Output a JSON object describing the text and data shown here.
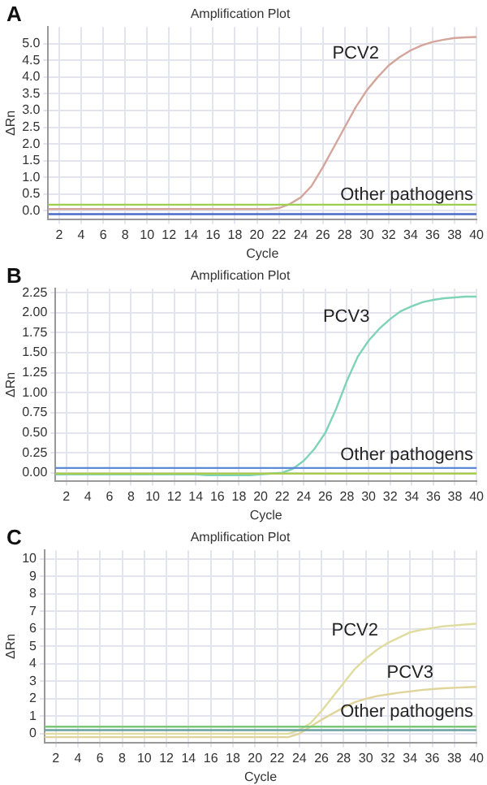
{
  "chart_data": [
    {
      "type": "line",
      "title": "Amplification Plot",
      "xlabel": "Cycle",
      "ylabel": "ΔRn",
      "annotations": [
        "A"
      ],
      "x": [
        1,
        2,
        3,
        4,
        5,
        6,
        7,
        8,
        9,
        10,
        11,
        12,
        13,
        14,
        15,
        16,
        17,
        18,
        19,
        20,
        21,
        22,
        23,
        24,
        25,
        26,
        27,
        28,
        29,
        30,
        31,
        32,
        33,
        34,
        35,
        36,
        37,
        38,
        39,
        40
      ],
      "series": [
        {
          "name": "PCV2",
          "color": "#d4a59a",
          "values": [
            0.05,
            0.05,
            0.05,
            0.05,
            0.05,
            0.05,
            0.05,
            0.05,
            0.05,
            0.05,
            0.05,
            0.05,
            0.05,
            0.05,
            0.05,
            0.05,
            0.05,
            0.05,
            0.05,
            0.05,
            0.05,
            0.08,
            0.2,
            0.4,
            0.75,
            1.3,
            1.9,
            2.5,
            3.1,
            3.6,
            4,
            4.35,
            4.6,
            4.8,
            4.95,
            5.05,
            5.12,
            5.17,
            5.19,
            5.2
          ]
        },
        {
          "name": "Other pathogens",
          "color": "#4a6cc8",
          "values": [
            -0.1,
            -0.1,
            -0.1,
            -0.1,
            -0.1,
            -0.1,
            -0.1,
            -0.1,
            -0.1,
            -0.1,
            -0.1,
            -0.1,
            -0.1,
            -0.1,
            -0.1,
            -0.1,
            -0.1,
            -0.1,
            -0.1,
            -0.1,
            -0.1,
            -0.1,
            -0.1,
            -0.1,
            -0.1,
            -0.1,
            -0.1,
            -0.1,
            -0.1,
            -0.1,
            -0.1,
            -0.1,
            -0.1,
            -0.1,
            -0.1,
            -0.1,
            -0.1,
            -0.1,
            -0.1,
            -0.1
          ]
        }
      ],
      "ref_lines": [
        {
          "axis": "y",
          "value": 0.18,
          "color": "#9ed050"
        }
      ],
      "xlim": [
        1,
        40
      ],
      "xticks": [
        2,
        4,
        6,
        8,
        10,
        12,
        14,
        16,
        18,
        20,
        22,
        24,
        26,
        28,
        30,
        32,
        34,
        36,
        38,
        40
      ],
      "ylim": [
        -0.25,
        5.5
      ],
      "yticks": [
        {
          "value": 0,
          "label": "0.0"
        },
        {
          "value": 0.5,
          "label": "0.5"
        },
        {
          "value": 1,
          "label": "1.0"
        },
        {
          "value": 1.5,
          "label": "1.5"
        },
        {
          "value": 2,
          "label": "2.0"
        },
        {
          "value": 2.5,
          "label": "2.5"
        },
        {
          "value": 3,
          "label": "3.0"
        },
        {
          "value": 3.5,
          "label": "3.5"
        },
        {
          "value": 4,
          "label": "4.0"
        },
        {
          "value": 4.5,
          "label": "4.5"
        },
        {
          "value": 5,
          "label": "5.0"
        }
      ],
      "grid": true,
      "legend": false
    },
    {
      "type": "line",
      "title": "Amplification Plot",
      "xlabel": "Cycle",
      "ylabel": "ΔRn",
      "annotations": [
        "B"
      ],
      "x": [
        1,
        2,
        3,
        4,
        5,
        6,
        7,
        8,
        9,
        10,
        11,
        12,
        13,
        14,
        15,
        16,
        17,
        18,
        19,
        20,
        21,
        22,
        23,
        24,
        25,
        26,
        27,
        28,
        29,
        30,
        31,
        32,
        33,
        34,
        35,
        36,
        37,
        38,
        39,
        40
      ],
      "series": [
        {
          "name": "PCV3",
          "color": "#7fd3b8",
          "values": [
            -0.02,
            -0.02,
            -0.02,
            -0.02,
            -0.02,
            -0.02,
            -0.02,
            -0.02,
            -0.02,
            -0.02,
            -0.02,
            -0.02,
            -0.02,
            -0.02,
            -0.03,
            -0.03,
            -0.03,
            -0.03,
            -0.03,
            -0.02,
            -0.01,
            0,
            0.05,
            0.15,
            0.3,
            0.5,
            0.8,
            1.15,
            1.45,
            1.65,
            1.8,
            1.92,
            2.02,
            2.08,
            2.13,
            2.16,
            2.18,
            2.19,
            2.2,
            2.2
          ]
        },
        {
          "name": "Other pathogens",
          "color": "#a8cc50",
          "values": [
            -0.01,
            -0.01,
            -0.01,
            -0.01,
            -0.01,
            -0.01,
            -0.01,
            -0.01,
            -0.01,
            -0.01,
            -0.01,
            -0.01,
            -0.01,
            -0.01,
            -0.01,
            -0.01,
            -0.01,
            -0.01,
            -0.01,
            -0.01,
            -0.01,
            -0.01,
            -0.01,
            -0.01,
            -0.01,
            -0.01,
            -0.01,
            -0.01,
            -0.01,
            -0.01,
            -0.01,
            -0.01,
            -0.01,
            -0.01,
            -0.01,
            -0.01,
            -0.01,
            -0.01,
            -0.01,
            -0.01
          ]
        }
      ],
      "ref_lines": [
        {
          "axis": "y",
          "value": 0.06,
          "color": "#5a8ad8"
        }
      ],
      "xlim": [
        1,
        40
      ],
      "xticks": [
        2,
        4,
        6,
        8,
        10,
        12,
        14,
        16,
        18,
        20,
        22,
        24,
        26,
        28,
        30,
        32,
        34,
        36,
        38,
        40
      ],
      "ylim": [
        -0.1,
        2.3
      ],
      "yticks": [
        {
          "value": 0,
          "label": "0.00"
        },
        {
          "value": 0.25,
          "label": "0.25"
        },
        {
          "value": 0.5,
          "label": "0.50"
        },
        {
          "value": 0.75,
          "label": "0.75"
        },
        {
          "value": 1,
          "label": "1.00"
        },
        {
          "value": 1.25,
          "label": "1.25"
        },
        {
          "value": 1.5,
          "label": "1.50"
        },
        {
          "value": 1.75,
          "label": "1.75"
        },
        {
          "value": 2,
          "label": "2.00"
        },
        {
          "value": 2.25,
          "label": "2.25"
        }
      ],
      "grid": true,
      "legend": false
    },
    {
      "type": "line",
      "title": "Amplification Plot",
      "xlabel": "Cycle",
      "ylabel": "ΔRn",
      "annotations": [
        "C"
      ],
      "x": [
        1,
        2,
        3,
        4,
        5,
        6,
        7,
        8,
        9,
        10,
        11,
        12,
        13,
        14,
        15,
        16,
        17,
        18,
        19,
        20,
        21,
        22,
        23,
        24,
        25,
        26,
        27,
        28,
        29,
        30,
        31,
        32,
        33,
        34,
        35,
        36,
        37,
        38,
        39,
        40
      ],
      "series": [
        {
          "name": "PCV2",
          "color": "#e0dca0",
          "values": [
            0,
            0,
            0,
            0,
            0,
            0,
            0,
            0,
            0,
            0,
            0,
            0,
            0,
            0,
            0,
            0,
            0,
            0,
            0,
            0,
            0,
            0,
            0,
            0.2,
            0.6,
            1.3,
            2.1,
            2.9,
            3.7,
            4.3,
            4.8,
            5.2,
            5.5,
            5.8,
            5.95,
            6.05,
            6.15,
            6.2,
            6.25,
            6.3
          ]
        },
        {
          "name": "PCV3",
          "color": "#e0d49a",
          "values": [
            -0.2,
            -0.2,
            -0.2,
            -0.2,
            -0.2,
            -0.2,
            -0.2,
            -0.2,
            -0.2,
            -0.2,
            -0.2,
            -0.2,
            -0.2,
            -0.2,
            -0.2,
            -0.2,
            -0.2,
            -0.2,
            -0.2,
            -0.2,
            -0.2,
            -0.2,
            -0.2,
            0,
            0.4,
            0.8,
            1.15,
            1.5,
            1.8,
            2,
            2.15,
            2.25,
            2.35,
            2.42,
            2.5,
            2.55,
            2.6,
            2.63,
            2.66,
            2.68
          ]
        },
        {
          "name": "Other pathogens",
          "color": "#6aa0a0",
          "values": [
            0.2,
            0.2,
            0.2,
            0.2,
            0.2,
            0.2,
            0.2,
            0.2,
            0.2,
            0.2,
            0.2,
            0.2,
            0.2,
            0.2,
            0.2,
            0.2,
            0.2,
            0.2,
            0.2,
            0.2,
            0.2,
            0.2,
            0.2,
            0.2,
            0.2,
            0.2,
            0.2,
            0.2,
            0.2,
            0.2,
            0.2,
            0.2,
            0.2,
            0.2,
            0.2,
            0.2,
            0.2,
            0.2,
            0.2,
            0.2
          ]
        }
      ],
      "ref_lines": [
        {
          "axis": "y",
          "value": 0.4,
          "color": "#7cc878"
        }
      ],
      "xlim": [
        1,
        40
      ],
      "xticks": [
        2,
        4,
        6,
        8,
        10,
        12,
        14,
        16,
        18,
        20,
        22,
        24,
        26,
        28,
        30,
        32,
        34,
        36,
        38,
        40
      ],
      "ylim": [
        -0.5,
        10.5
      ],
      "yticks": [
        0,
        1,
        2,
        3,
        4,
        5,
        6,
        7,
        8,
        9,
        10
      ],
      "grid": true,
      "legend": false
    }
  ]
}
